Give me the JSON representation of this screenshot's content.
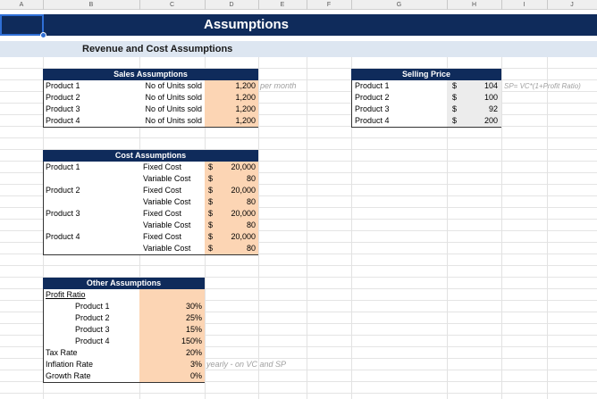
{
  "column_headers": [
    "A",
    "B",
    "C",
    "D",
    "E",
    "F",
    "G",
    "H",
    "I",
    "J"
  ],
  "title": "Assumptions",
  "section_title": "Revenue and Cost Assumptions",
  "sales_assumptions": {
    "title": "Sales Assumptions",
    "rows": [
      [
        "Product 1",
        "No of Units sold",
        "1,200"
      ],
      [
        "Product 2",
        "No of Units sold",
        "1,200"
      ],
      [
        "Product 3",
        "No of Units sold",
        "1,200"
      ],
      [
        "Product 4",
        "No of Units sold",
        "1,200"
      ]
    ],
    "note": "per month"
  },
  "selling_price": {
    "title": "Selling Price",
    "rows": [
      [
        "Product 1",
        "$",
        "104"
      ],
      [
        "Product 2",
        "$",
        "100"
      ],
      [
        "Product 3",
        "$",
        "92"
      ],
      [
        "Product 4",
        "$",
        "200"
      ]
    ],
    "note": "SP= VC*(1+Profit Ratio)"
  },
  "cost_assumptions": {
    "title": "Cost Assumptions",
    "products": [
      {
        "name": "Product 1",
        "items": [
          [
            "Fixed Cost",
            "$",
            "20,000"
          ],
          [
            "Variable Cost",
            "$",
            "80"
          ]
        ]
      },
      {
        "name": "Product 2",
        "items": [
          [
            "Fixed Cost",
            "$",
            "20,000"
          ],
          [
            "Variable Cost",
            "$",
            "80"
          ]
        ]
      },
      {
        "name": "Product 3",
        "items": [
          [
            "Fixed Cost",
            "$",
            "20,000"
          ],
          [
            "Variable Cost",
            "$",
            "80"
          ]
        ]
      },
      {
        "name": "Product 4",
        "items": [
          [
            "Fixed Cost",
            "$",
            "20,000"
          ],
          [
            "Variable Cost",
            "$",
            "80"
          ]
        ]
      }
    ]
  },
  "other_assumptions": {
    "title": "Other Assumptions",
    "profit_ratio_label": "Profit Ratio",
    "profit_ratios": [
      [
        "Product 1",
        "30%"
      ],
      [
        "Product 2",
        "25%"
      ],
      [
        "Product 3",
        "15%"
      ],
      [
        "Product 4",
        "150%"
      ]
    ],
    "rows": [
      [
        "Tax Rate",
        "20%"
      ],
      [
        "Inflation Rate",
        "3%"
      ],
      [
        "Growth Rate",
        "0%"
      ]
    ],
    "note": "yearly - on VC and SP"
  }
}
